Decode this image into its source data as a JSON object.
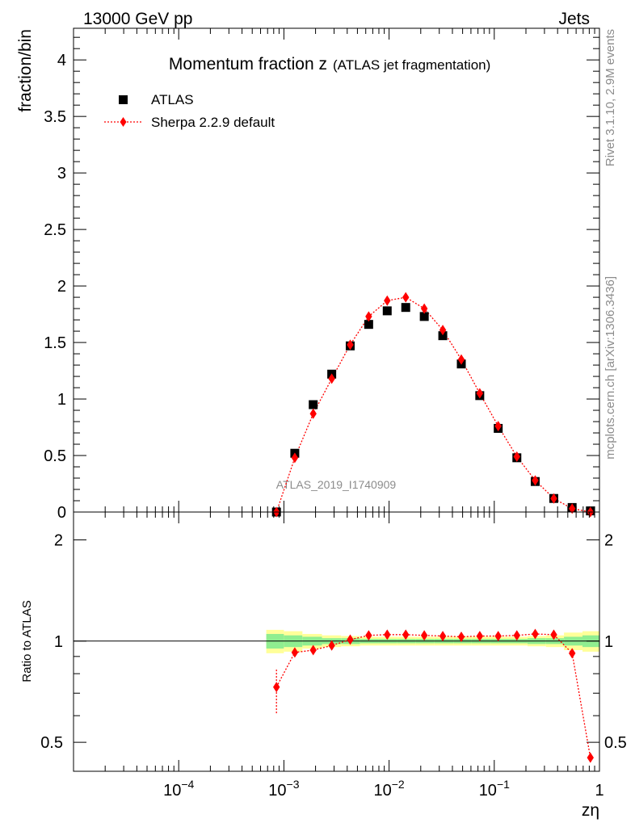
{
  "header": {
    "left": "13000 GeV pp",
    "right": "Jets"
  },
  "side": {
    "rivet": "Rivet 3.1.10,  2.9M events",
    "mcplots": "mcplots.cern.ch [arXiv:1306.3436]"
  },
  "colors": {
    "data": "#000000",
    "mc": "#ff0000",
    "band_inner": "#90ee90",
    "band_outer": "#ffff99"
  },
  "chart_data": [
    {
      "type": "scatter",
      "title_main": "Momentum fraction z",
      "title_sub": "(ATLAS jet fragmentation)",
      "ylabel": "fraction/bin",
      "xlabel": "",
      "watermark": "ATLAS_2019_I1740909",
      "x_scale": "log",
      "xlim": [
        1e-05,
        1
      ],
      "ylim": [
        0,
        4.28
      ],
      "y_ticks": [
        {
          "v": 0,
          "label": "0"
        },
        {
          "v": 0.5,
          "label": "0.5"
        },
        {
          "v": 1,
          "label": "1"
        },
        {
          "v": 1.5,
          "label": "1.5"
        },
        {
          "v": 2,
          "label": "2"
        },
        {
          "v": 2.5,
          "label": "2.5"
        },
        {
          "v": 3,
          "label": "3"
        },
        {
          "v": 3.5,
          "label": "3.5"
        },
        {
          "v": 4,
          "label": "4"
        }
      ],
      "legend": {
        "position": "top-left",
        "entries": [
          "ATLAS",
          "Sherpa 2.2.9 default"
        ]
      },
      "series": [
        {
          "name": "ATLAS",
          "marker": "square",
          "x": [
            0.00085,
            0.00127,
            0.0019,
            0.00285,
            0.00427,
            0.0064,
            0.0096,
            0.0144,
            0.0216,
            0.0324,
            0.0486,
            0.0728,
            0.109,
            0.164,
            0.245,
            0.368,
            0.55,
            0.82
          ],
          "y": [
            0.0,
            0.52,
            0.95,
            1.22,
            1.47,
            1.66,
            1.78,
            1.81,
            1.73,
            1.56,
            1.31,
            1.03,
            0.74,
            0.48,
            0.27,
            0.12,
            0.04,
            0.01
          ]
        },
        {
          "name": "Sherpa 2.2.9 default",
          "marker": "diamond",
          "x": [
            0.00085,
            0.00127,
            0.0019,
            0.00285,
            0.00427,
            0.0064,
            0.0096,
            0.0144,
            0.0216,
            0.0324,
            0.0486,
            0.0728,
            0.109,
            0.164,
            0.245,
            0.368,
            0.55,
            0.82
          ],
          "y": [
            0.0,
            0.48,
            0.87,
            1.18,
            1.48,
            1.73,
            1.87,
            1.9,
            1.8,
            1.61,
            1.35,
            1.05,
            0.76,
            0.49,
            0.28,
            0.12,
            0.03,
            0.0
          ]
        }
      ]
    },
    {
      "type": "scatter",
      "ylabel": "Ratio to ATLAS",
      "xlabel": "zη",
      "x_scale": "log",
      "y_scale": "log",
      "xlim": [
        1e-05,
        1
      ],
      "ylim": [
        0.41,
        2.42
      ],
      "x_ticks": [
        {
          "v": 0.0001,
          "base": "10",
          "exp": "−4"
        },
        {
          "v": 0.001,
          "base": "10",
          "exp": "−3"
        },
        {
          "v": 0.01,
          "base": "10",
          "exp": "−2"
        },
        {
          "v": 0.1,
          "base": "10",
          "exp": "−1"
        },
        {
          "v": 1,
          "base": "1",
          "exp": ""
        }
      ],
      "y_ticks": [
        {
          "v": 0.5,
          "label": "0.5"
        },
        {
          "v": 1,
          "label": "1"
        },
        {
          "v": 2,
          "label": "2"
        }
      ],
      "reference": 1,
      "band": {
        "x_edges": [
          0.00068,
          0.001,
          0.0015,
          0.0023,
          0.0035,
          0.0053,
          0.008,
          0.012,
          0.018,
          0.027,
          0.041,
          0.061,
          0.092,
          0.138,
          0.207,
          0.31,
          0.46,
          0.69,
          1.0
        ],
        "inner_lo": [
          0.95,
          0.96,
          0.97,
          0.98,
          0.98,
          0.985,
          0.985,
          0.985,
          0.985,
          0.985,
          0.985,
          0.985,
          0.985,
          0.985,
          0.98,
          0.98,
          0.97,
          0.96
        ],
        "inner_hi": [
          1.05,
          1.04,
          1.03,
          1.02,
          1.02,
          1.015,
          1.015,
          1.015,
          1.015,
          1.015,
          1.015,
          1.015,
          1.015,
          1.015,
          1.02,
          1.02,
          1.03,
          1.04
        ],
        "outer_lo": [
          0.92,
          0.93,
          0.95,
          0.96,
          0.965,
          0.97,
          0.97,
          0.97,
          0.97,
          0.97,
          0.97,
          0.97,
          0.97,
          0.97,
          0.965,
          0.96,
          0.94,
          0.93
        ],
        "outer_hi": [
          1.08,
          1.07,
          1.05,
          1.04,
          1.035,
          1.03,
          1.03,
          1.03,
          1.03,
          1.03,
          1.03,
          1.03,
          1.03,
          1.03,
          1.035,
          1.04,
          1.06,
          1.07
        ]
      },
      "series": [
        {
          "name": "Sherpa 2.2.9 default",
          "marker": "diamond",
          "x": [
            0.00085,
            0.00127,
            0.0019,
            0.00285,
            0.00427,
            0.0064,
            0.0096,
            0.0144,
            0.0216,
            0.0324,
            0.0486,
            0.0728,
            0.109,
            0.164,
            0.245,
            0.368,
            0.55,
            0.82
          ],
          "y": [
            0.73,
            0.925,
            0.94,
            0.97,
            1.01,
            1.04,
            1.045,
            1.045,
            1.04,
            1.035,
            1.03,
            1.035,
            1.035,
            1.04,
            1.05,
            1.045,
            0.92,
            0.45
          ],
          "err_lo": [
            0.61,
            0.915,
            0.93,
            0.96,
            1.0,
            1.03,
            1.035,
            1.035,
            1.03,
            1.025,
            1.02,
            1.025,
            1.025,
            1.03,
            1.04,
            1.035,
            0.91,
            0.44
          ],
          "err_hi": [
            0.83,
            0.935,
            0.95,
            0.98,
            1.02,
            1.05,
            1.055,
            1.055,
            1.05,
            1.045,
            1.04,
            1.045,
            1.045,
            1.05,
            1.06,
            1.055,
            0.93,
            0.46
          ]
        }
      ]
    }
  ]
}
